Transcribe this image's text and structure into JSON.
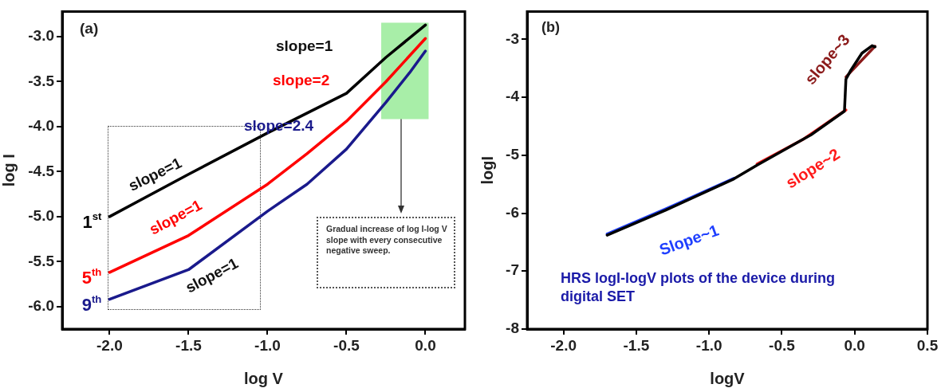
{
  "chart_data": [
    {
      "type": "line",
      "xlabel": "log V",
      "ylabel": "log I",
      "xlim": [
        -2.3,
        0.25
      ],
      "ylim": [
        -6.25,
        -2.72
      ],
      "xticks": [
        {
          "value": -2,
          "label": "-2.0"
        },
        {
          "value": -1.5,
          "label": "-1.5"
        },
        {
          "value": -1,
          "label": "-1.0"
        },
        {
          "value": -0.5,
          "label": "-0.5"
        },
        {
          "value": 0,
          "label": "0.0"
        }
      ],
      "yticks": [
        {
          "value": -3,
          "label": "-3.0"
        },
        {
          "value": -3.5,
          "label": "-3.5"
        },
        {
          "value": -4,
          "label": "-4.0"
        },
        {
          "value": -4.5,
          "label": "-4.5"
        },
        {
          "value": -5,
          "label": "-5.0"
        },
        {
          "value": -5.5,
          "label": "-5.5"
        },
        {
          "value": -6,
          "label": "-6.0"
        }
      ],
      "grid": false,
      "legend": false,
      "marker": "none",
      "line_style": "solid",
      "bands": [
        {
          "axis": "x",
          "from": -0.28,
          "to": 0.02,
          "color": "#a8eea8"
        }
      ],
      "series": [
        {
          "name": "1$^{st}$",
          "color": "#000000",
          "x": [
            -2,
            -1.5,
            -1,
            -0.5,
            -0.25,
            0
          ],
          "values": [
            -5.0,
            -4.53,
            -4.07,
            -3.63,
            -3.23,
            -2.87
          ]
        },
        {
          "name": "5$^{th}$",
          "color": "#ff0000",
          "x": [
            -2,
            -1.5,
            -1,
            -0.75,
            -0.5,
            -0.25,
            0
          ],
          "values": [
            -5.62,
            -5.21,
            -4.64,
            -4.3,
            -3.94,
            -3.5,
            -3.02
          ]
        },
        {
          "name": "9$^{th}$",
          "color": "#1a1a8c",
          "x": [
            -2,
            -1.5,
            -1,
            -0.75,
            -0.5,
            -0.25,
            -0.1,
            0
          ],
          "values": [
            -5.92,
            -5.59,
            -4.94,
            -4.64,
            -4.25,
            -3.73,
            -3.4,
            -3.16
          ]
        }
      ],
      "annotations": [
        "(a)",
        "slope=1",
        "slope=2",
        "slope=2.4",
        {
          "text": "slope=1",
          "x": -1.75,
          "y": -4.77
        },
        {
          "text": "slope=1",
          "x": -1.61,
          "y": -5.3
        },
        {
          "text": "slope=1",
          "x": -1.35,
          "y": -5.45
        },
        "Gradual increase of log I-log V slope with every consecutive negative sweep."
      ]
    },
    {
      "type": "line",
      "xlabel": "logV",
      "ylabel": "logI",
      "xlim": [
        -2.25,
        0.5
      ],
      "ylim": [
        -8,
        -2.52
      ],
      "xticks": [
        {
          "value": -2,
          "label": "-2.0"
        },
        {
          "value": -1.5,
          "label": "-1.5"
        },
        {
          "value": -1,
          "label": "-1.0"
        },
        {
          "value": -0.5,
          "label": "-0.5"
        },
        {
          "value": 0,
          "label": "0.0"
        },
        {
          "value": 0.5,
          "label": "0.5"
        }
      ],
      "yticks": [
        -3,
        -4,
        -5,
        -6,
        -7,
        -8
      ],
      "grid": false,
      "legend": false,
      "marker": "none",
      "line_style": "solid",
      "series": [
        {
          "color": "#000000",
          "x": [
            -1.7,
            -1.3,
            -0.83,
            -0.67,
            -0.3,
            -0.07,
            -0.06,
            -0.03,
            0.05,
            0.12,
            0.14
          ],
          "values": [
            -6.38,
            -5.95,
            -5.41,
            -5.17,
            -4.65,
            -4.24,
            -3.69,
            -3.55,
            -3.24,
            -3.11,
            -3.13
          ]
        },
        {
          "color": "#1f3fff",
          "x": [
            -1.7,
            -1.3,
            -0.83
          ],
          "values": [
            -6.36,
            -5.93,
            -5.4
          ]
        },
        {
          "color": "#ff1a1a",
          "x": [
            -0.67,
            -0.35,
            -0.06
          ],
          "values": [
            -5.15,
            -4.72,
            -4.22
          ]
        },
        {
          "color": "#8b1a1a",
          "x": [
            -0.06,
            0.14
          ],
          "values": [
            -3.65,
            -3.12
          ]
        }
      ],
      "annotations": [
        "(b)",
        {
          "text": "Slope~1",
          "x": -1.3,
          "y": -5.93
        },
        {
          "text": "slope~2",
          "x": -0.35,
          "y": -4.72
        },
        {
          "text": "slope~3",
          "x": -0.03,
          "y": -3.55
        },
        "HRS logI-logV plots of the device during digital SET"
      ]
    }
  ]
}
